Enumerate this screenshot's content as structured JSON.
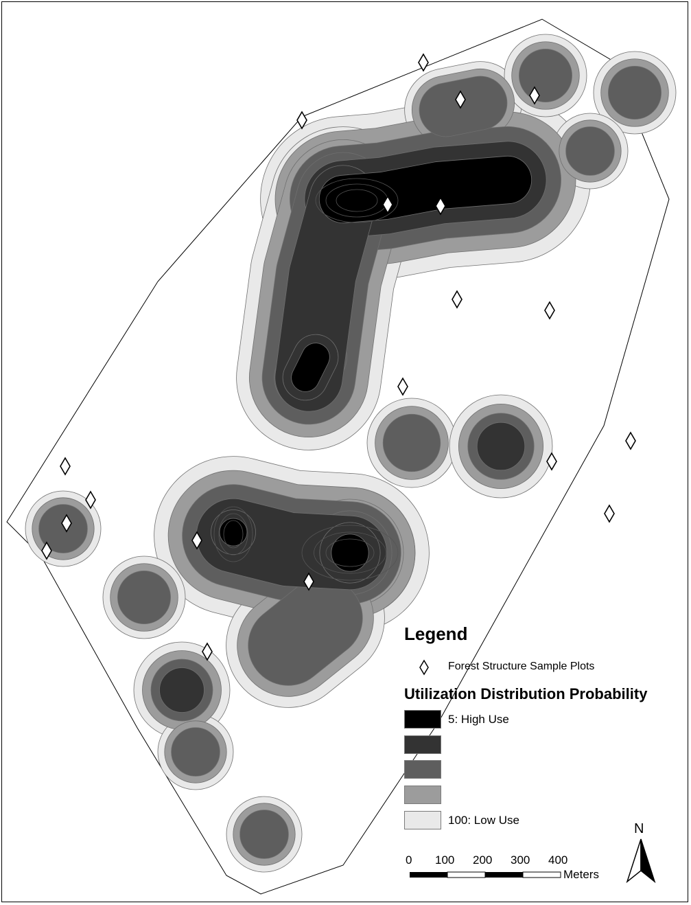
{
  "legend": {
    "title": "Legend",
    "plots_label": "Forest Structure Sample Plots",
    "ud_title": "Utilization Distribution Probability",
    "classes": [
      {
        "label": "5: High Use",
        "color": "#000000"
      },
      {
        "label": "",
        "color": "#333333"
      },
      {
        "label": "",
        "color": "#5e5e5e"
      },
      {
        "label": "",
        "color": "#9c9c9c"
      },
      {
        "label": "100: Low Use",
        "color": "#e9e9e9"
      }
    ]
  },
  "scale_bar": {
    "ticks": [
      "0",
      "100",
      "200",
      "300",
      "400"
    ],
    "unit": "Meters"
  },
  "north_arrow": {
    "label": "N"
  },
  "colors": {
    "high_use": "#000000",
    "low_use": "#e9e9e9",
    "boundary": "#000000",
    "contour_line": "#6f6f6f"
  }
}
